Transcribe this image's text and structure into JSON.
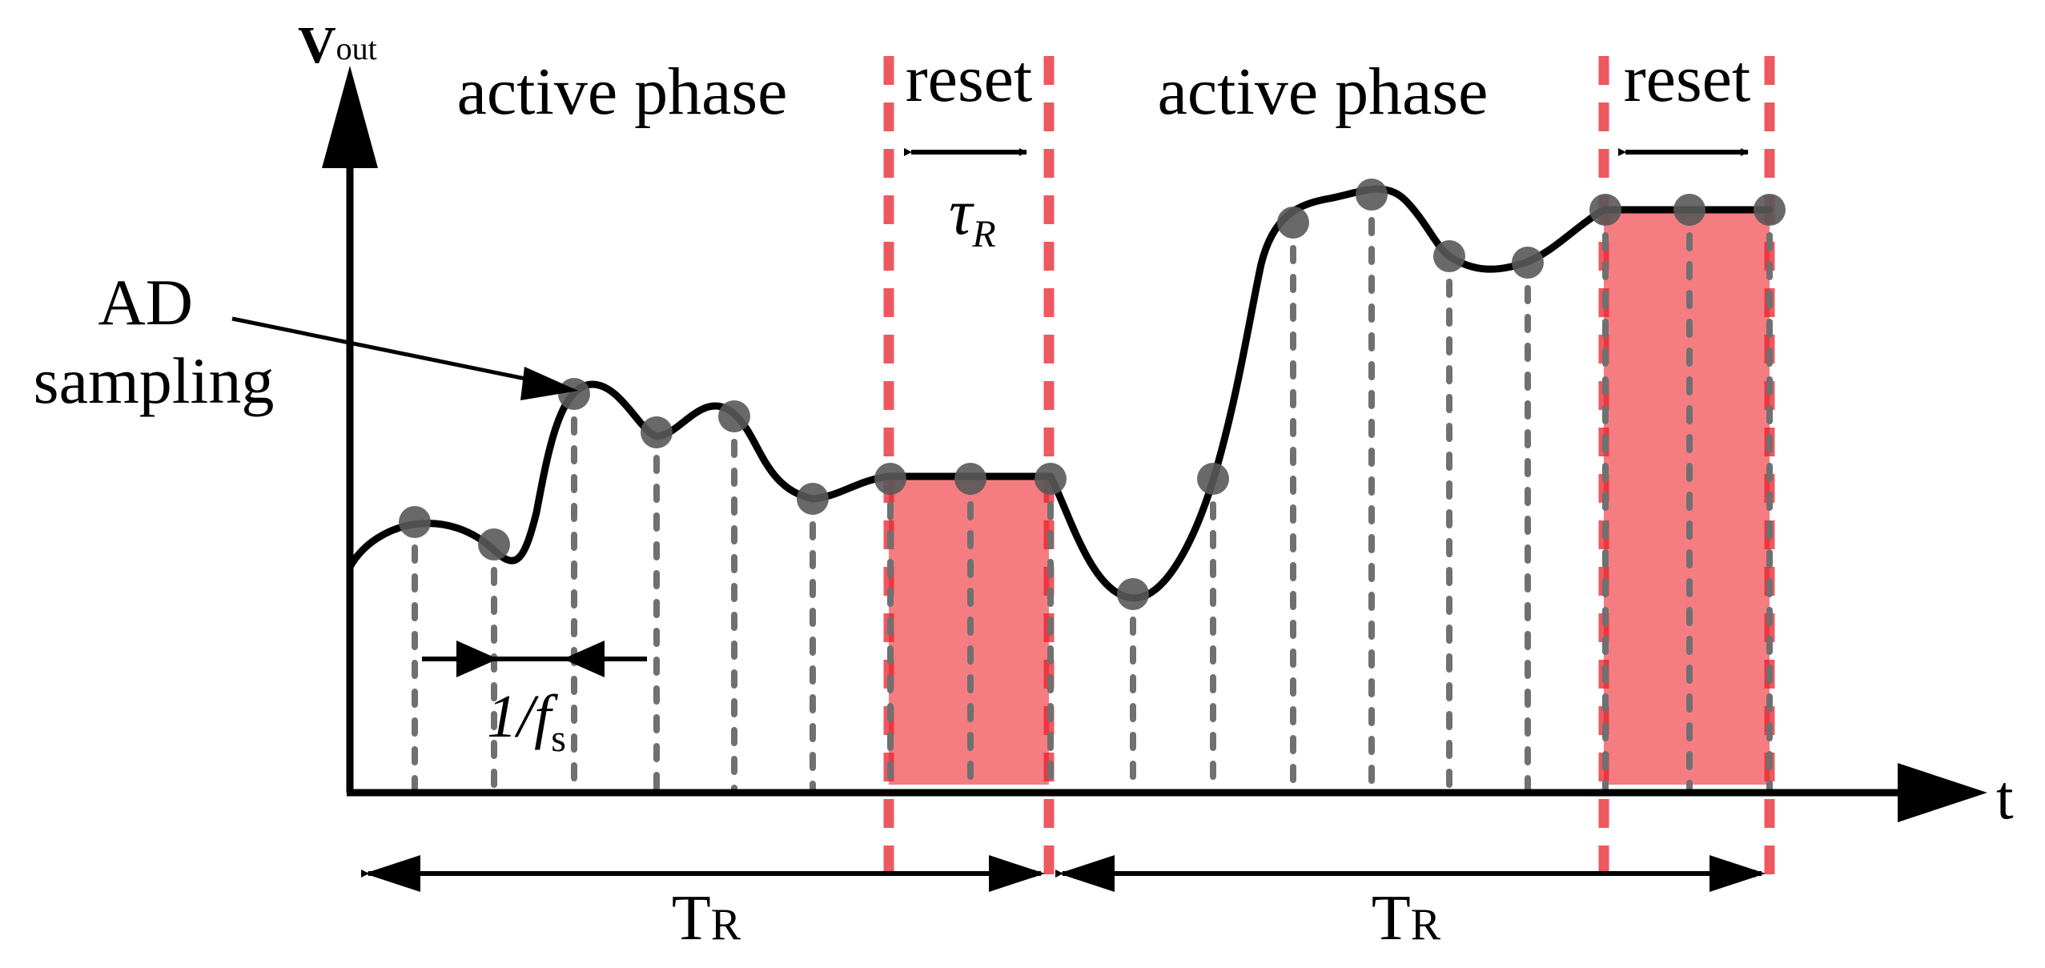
{
  "diagram": {
    "axes": {
      "y_label_main": "V",
      "y_label_sub": "out",
      "x_label": "t"
    },
    "phases": [
      {
        "label": "active phase"
      },
      {
        "label": "reset"
      },
      {
        "label": "active phase"
      },
      {
        "label": "reset"
      }
    ],
    "reset_duration_label": "τ",
    "reset_duration_sub": "R",
    "ad_sampling_label": [
      "AD",
      "sampling"
    ],
    "sample_interval": {
      "prefix": "1/",
      "symbol": "f",
      "sub": "s"
    },
    "period_label": {
      "main": "T",
      "sub": "R"
    },
    "colors": {
      "reset_fill": "#f2585e",
      "reset_border": "#e8202a",
      "sample_dot": "#595959",
      "sample_line": "#707070",
      "signal": "#000000"
    }
  }
}
